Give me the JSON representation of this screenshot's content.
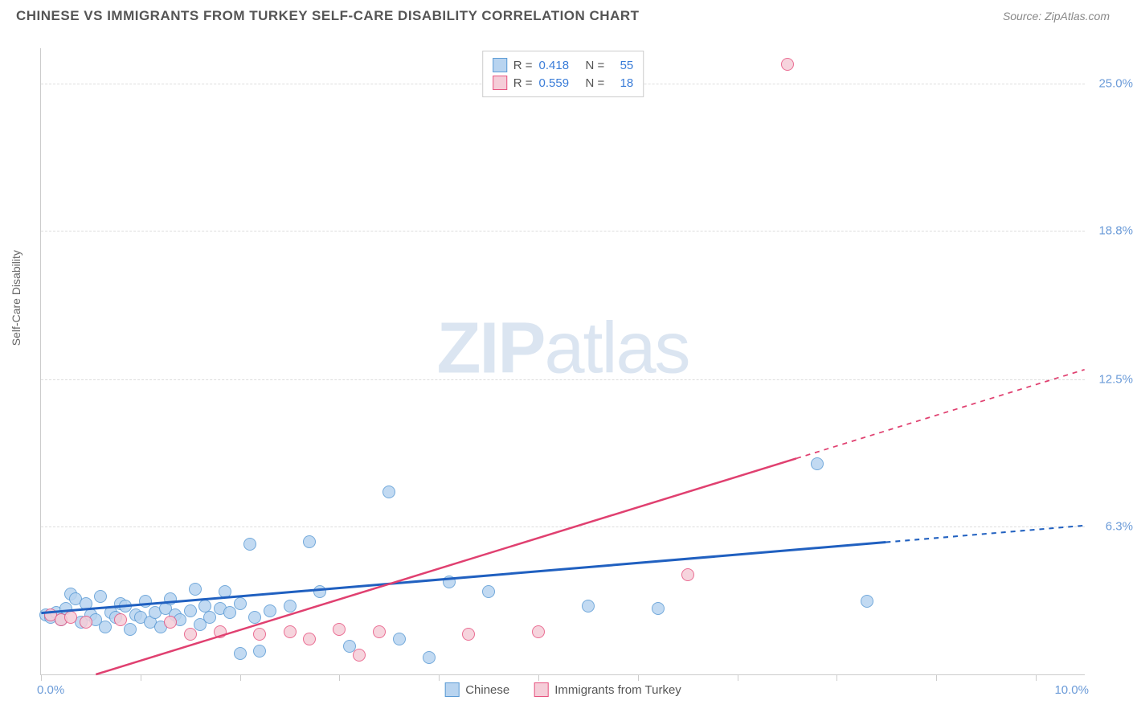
{
  "header": {
    "title": "CHINESE VS IMMIGRANTS FROM TURKEY SELF-CARE DISABILITY CORRELATION CHART",
    "source": "Source: ZipAtlas.com"
  },
  "watermark": {
    "bold": "ZIP",
    "light": "atlas"
  },
  "y_axis": {
    "title": "Self-Care Disability",
    "ticks": [
      {
        "value": 6.3,
        "label": "6.3%"
      },
      {
        "value": 12.5,
        "label": "12.5%"
      },
      {
        "value": 18.8,
        "label": "18.8%"
      },
      {
        "value": 25.0,
        "label": "25.0%"
      }
    ],
    "min": 0,
    "max": 26.5,
    "label_color": "#6b9bd8",
    "grid_color": "#dddddd"
  },
  "x_axis": {
    "min": 0,
    "max": 10.5,
    "min_label": "0.0%",
    "max_label": "10.0%",
    "tick_positions": [
      0,
      1,
      2,
      3,
      4,
      5,
      6,
      7,
      8,
      9,
      10
    ],
    "label_color": "#6b9bd8"
  },
  "series": [
    {
      "name": "Chinese",
      "marker_fill": "#b8d4f0",
      "marker_stroke": "#5b9bd5",
      "marker_size": 16,
      "trend_color": "#2060c0",
      "trend_width": 3,
      "r": "0.418",
      "n": "55",
      "trend": {
        "x1": 0,
        "y1": 2.6,
        "x2": 10.5,
        "y2": 6.3,
        "x_solid_max": 8.5
      },
      "points": [
        [
          0.05,
          2.5
        ],
        [
          0.1,
          2.4
        ],
        [
          0.15,
          2.6
        ],
        [
          0.2,
          2.3
        ],
        [
          0.25,
          2.8
        ],
        [
          0.3,
          3.4
        ],
        [
          0.35,
          3.2
        ],
        [
          0.4,
          2.2
        ],
        [
          0.45,
          3.0
        ],
        [
          0.5,
          2.5
        ],
        [
          0.55,
          2.3
        ],
        [
          0.6,
          3.3
        ],
        [
          0.65,
          2.0
        ],
        [
          0.7,
          2.6
        ],
        [
          0.75,
          2.4
        ],
        [
          0.8,
          3.0
        ],
        [
          0.85,
          2.9
        ],
        [
          0.9,
          1.9
        ],
        [
          0.95,
          2.5
        ],
        [
          1.0,
          2.4
        ],
        [
          1.05,
          3.1
        ],
        [
          1.1,
          2.2
        ],
        [
          1.15,
          2.6
        ],
        [
          1.2,
          2.0
        ],
        [
          1.25,
          2.8
        ],
        [
          1.3,
          3.2
        ],
        [
          1.35,
          2.5
        ],
        [
          1.4,
          2.3
        ],
        [
          1.5,
          2.7
        ],
        [
          1.55,
          3.6
        ],
        [
          1.6,
          2.1
        ],
        [
          1.65,
          2.9
        ],
        [
          1.7,
          2.4
        ],
        [
          1.8,
          2.8
        ],
        [
          1.85,
          3.5
        ],
        [
          1.9,
          2.6
        ],
        [
          2.0,
          0.9
        ],
        [
          2.0,
          3.0
        ],
        [
          2.1,
          5.5
        ],
        [
          2.15,
          2.4
        ],
        [
          2.2,
          1.0
        ],
        [
          2.3,
          2.7
        ],
        [
          2.5,
          2.9
        ],
        [
          2.7,
          5.6
        ],
        [
          2.8,
          3.5
        ],
        [
          3.1,
          1.2
        ],
        [
          3.5,
          7.7
        ],
        [
          3.6,
          1.5
        ],
        [
          3.9,
          0.7
        ],
        [
          4.1,
          3.9
        ],
        [
          4.5,
          3.5
        ],
        [
          5.5,
          2.9
        ],
        [
          6.2,
          2.8
        ],
        [
          7.8,
          8.9
        ],
        [
          8.3,
          3.1
        ]
      ]
    },
    {
      "name": "Immigrants from Turkey",
      "marker_fill": "#f5cdd8",
      "marker_stroke": "#e75480",
      "marker_size": 16,
      "trend_color": "#e04070",
      "trend_width": 2.5,
      "r": "0.559",
      "n": "18",
      "trend": {
        "x1": 0.55,
        "y1": 0,
        "x2": 10.5,
        "y2": 12.9,
        "x_solid_max": 7.6
      },
      "points": [
        [
          0.1,
          2.5
        ],
        [
          0.2,
          2.3
        ],
        [
          0.3,
          2.4
        ],
        [
          0.45,
          2.2
        ],
        [
          0.8,
          2.3
        ],
        [
          1.3,
          2.2
        ],
        [
          1.5,
          1.7
        ],
        [
          1.8,
          1.8
        ],
        [
          2.2,
          1.7
        ],
        [
          2.5,
          1.8
        ],
        [
          2.7,
          1.5
        ],
        [
          3.0,
          1.9
        ],
        [
          3.2,
          0.8
        ],
        [
          3.4,
          1.8
        ],
        [
          4.3,
          1.7
        ],
        [
          5.0,
          1.8
        ],
        [
          6.5,
          4.2
        ],
        [
          7.5,
          25.8
        ]
      ]
    }
  ],
  "legend_top_labels": {
    "r": "R  =",
    "n": "N  ="
  },
  "background_color": "#ffffff",
  "axis_color": "#cccccc"
}
